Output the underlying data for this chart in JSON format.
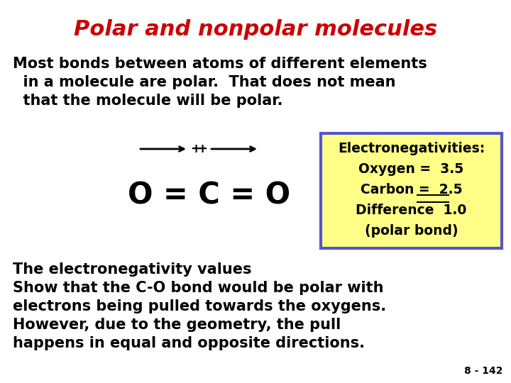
{
  "title": "Polar and nonpolar molecules",
  "title_color": "#cc0000",
  "title_fontsize": 22,
  "bg_color": "#ffffff",
  "body_color": "#000000",
  "body_fontsize": 15,
  "para1_lines": [
    "Most bonds between atoms of different elements",
    "  in a molecule are polar.  That does not mean",
    "  that the molecule will be polar."
  ],
  "molecule_label": "O = C = O",
  "molecule_fontsize": 30,
  "box_bg": "#ffff88",
  "box_border": "#5555cc",
  "box_lines": [
    "Electronegativities:",
    "Oxygen =  3.5",
    "Carbon =  2.5",
    "Difference  1.0",
    "(polar bond)"
  ],
  "para2_lines": [
    "The electronegativity values",
    "Show that the C-O bond would be polar with",
    "electrons being pulled towards the oxygens.",
    "However, due to the geometry, the pull",
    "happens in equal and opposite directions."
  ],
  "footnote": "8 - 142"
}
